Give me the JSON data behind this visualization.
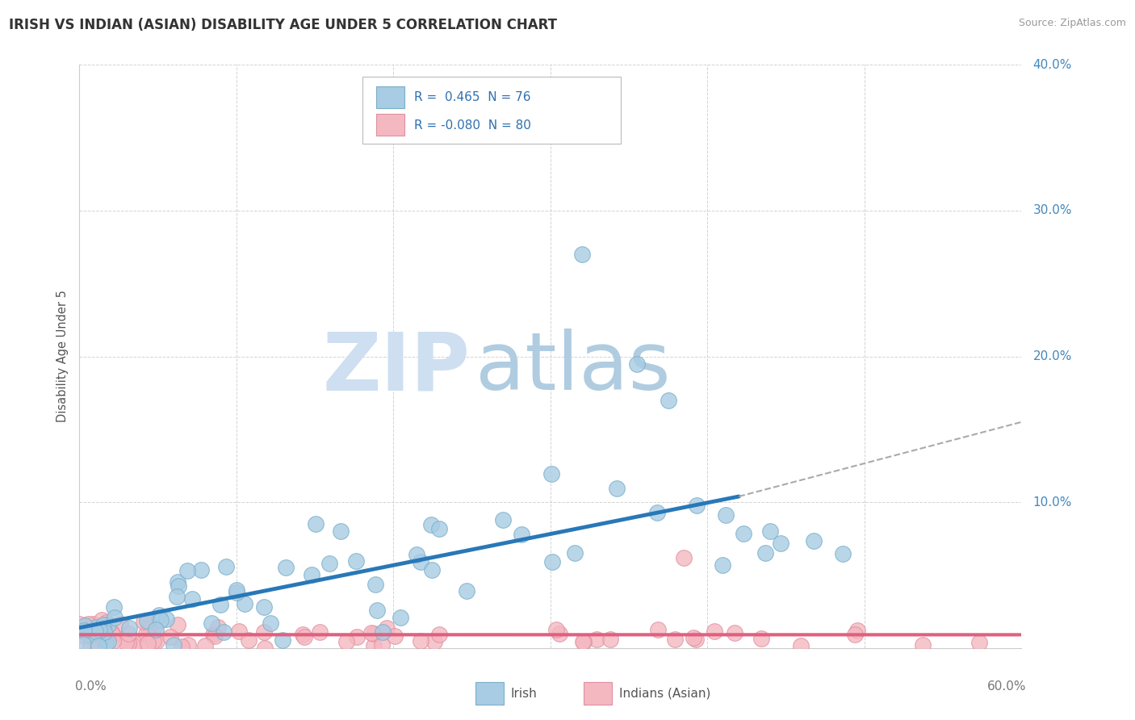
{
  "title": "IRISH VS INDIAN (ASIAN) DISABILITY AGE UNDER 5 CORRELATION CHART",
  "source": "Source: ZipAtlas.com",
  "ylabel": "Disability Age Under 5",
  "xlim": [
    0.0,
    0.6
  ],
  "ylim": [
    0.0,
    0.4
  ],
  "y_label_vals": [
    0.1,
    0.2,
    0.3,
    0.4
  ],
  "y_label_strs": [
    "10.0%",
    "20.0%",
    "30.0%",
    "40.0%"
  ],
  "irish_color": "#a8cce4",
  "irish_edge": "#7aaec8",
  "indian_color": "#f4b8c1",
  "indian_edge": "#e090a0",
  "irish_line_color": "#2878b8",
  "indian_line_color": "#e06080",
  "dash_line_color": "#aaaaaa",
  "irish_R": 0.465,
  "irish_N": 76,
  "indian_R": -0.08,
  "indian_N": 80,
  "legend_text_color": "#3070b0",
  "watermark_zip": "ZIP",
  "watermark_atlas": "atlas",
  "watermark_color_zip": "#d0e4f0",
  "watermark_color_atlas": "#b8d4e8",
  "background_color": "#ffffff",
  "grid_color": "#cccccc",
  "title_fontsize": 12,
  "axis_label_color": "#4488bb",
  "bottom_label_color": "#777777"
}
